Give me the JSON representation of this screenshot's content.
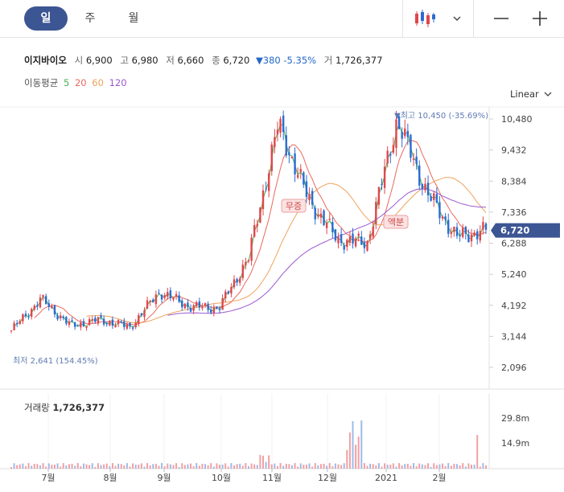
{
  "tabs": [
    {
      "label": "일",
      "active": true
    },
    {
      "label": "주",
      "active": false
    },
    {
      "label": "월",
      "active": false
    }
  ],
  "quote": {
    "name": "이지바이오",
    "open_label": "시",
    "open": "6,900",
    "high_label": "고",
    "high": "6,980",
    "low_label": "저",
    "low": "6,660",
    "close_label": "종",
    "close": "6,720",
    "change": "▼380 -5.35%",
    "volume_label": "거",
    "volume": "1,726,377"
  },
  "moving_average": {
    "label": "이동평균",
    "periods": [
      {
        "value": "5",
        "color": "#4caf50"
      },
      {
        "value": "20",
        "color": "#e8695d"
      },
      {
        "value": "60",
        "color": "#f0a25c"
      },
      {
        "value": "120",
        "color": "#9b59d0"
      }
    ]
  },
  "scale_mode": "Linear",
  "colors": {
    "up": "#e0474c",
    "down": "#2a6dd3",
    "accent": "#3c5593",
    "current_price_bg": "#3c5593"
  },
  "chart_data": {
    "type": "candlestick",
    "y_ticks": [
      "10,480",
      "9,432",
      "8,384",
      "7,336",
      "6,288",
      "5,240",
      "4,192",
      "3,144",
      "2,096"
    ],
    "ylim": [
      2096,
      10480
    ],
    "x_ticks": [
      "7월",
      "8월",
      "9월",
      "10월",
      "11월",
      "12월",
      "2021",
      "2월"
    ],
    "current_price": "6,720",
    "annotations": {
      "max": "▼최고 10,450 (-35.69%)",
      "min": "최저 2,641 (154.45%)",
      "event1": "무증",
      "event2": "액분"
    },
    "close_path": [
      {
        "month": "7월",
        "close": 3350
      },
      {
        "month": "7월",
        "close": 4400
      },
      {
        "month": "8월",
        "close": 3500
      },
      {
        "month": "8월",
        "close": 3700
      },
      {
        "month": "9월",
        "close": 3450
      },
      {
        "month": "9월",
        "close": 4650
      },
      {
        "month": "10월",
        "close": 4150
      },
      {
        "month": "10월",
        "close": 4100
      },
      {
        "month": "11월",
        "close": 5800
      },
      {
        "month": "11월",
        "close": 10300
      },
      {
        "month": "11월",
        "close": 7800
      },
      {
        "month": "12월",
        "close": 6400
      },
      {
        "month": "12월",
        "close": 6300
      },
      {
        "month": "2021",
        "close": 10450
      },
      {
        "month": "2021",
        "close": 8000
      },
      {
        "month": "2월",
        "close": 6500
      },
      {
        "month": "2월",
        "close": 6720
      }
    ],
    "volume": {
      "label": "거래량",
      "value": "1,726,377",
      "y_ticks": [
        "29.8m",
        "14.9m"
      ]
    }
  }
}
